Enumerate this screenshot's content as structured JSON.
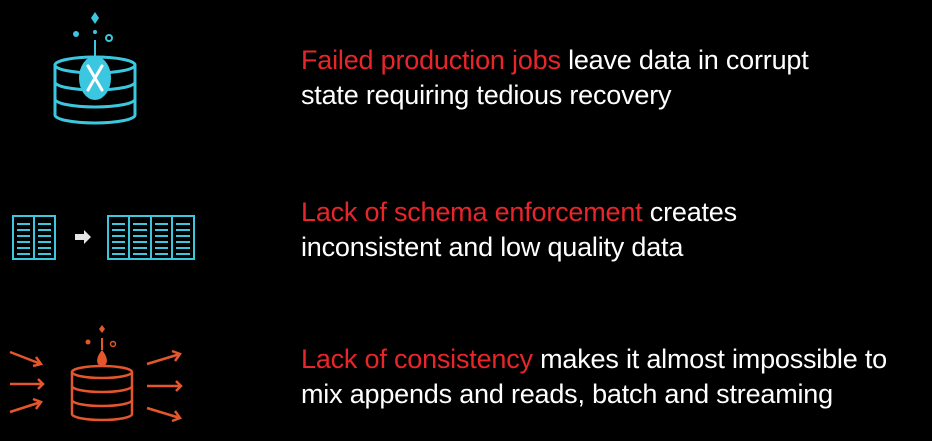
{
  "items": [
    {
      "highlight": "Failed production jobs",
      "rest_line1": " leave data in corrupt",
      "line2": "state requiring tedious recovery",
      "icon": "database-failed-icon",
      "icon_color": "#3cc7e1"
    },
    {
      "highlight": "Lack of schema enforcement",
      "rest_line1": " creates",
      "line2": "inconsistent and low quality data",
      "icon": "schema-table-transform-icon",
      "icon_color": "#3cc7e1"
    },
    {
      "highlight": "Lack of consistency",
      "rest_line1": " makes it almost impossible to",
      "line2": "mix appends and reads, batch and streaming",
      "icon": "database-concurrent-writes-icon",
      "icon_color": "#e4562c"
    }
  ],
  "colors": {
    "background": "#000000",
    "text": "#ffffff",
    "highlight": "#e8262a",
    "teal": "#3cc7e1",
    "orange": "#e4562c"
  }
}
